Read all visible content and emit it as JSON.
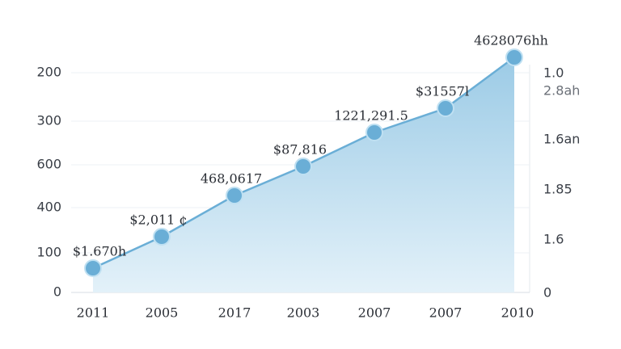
{
  "chart_data": {
    "type": "area",
    "categories": [
      "2011",
      "2005",
      "2017",
      "2003",
      "2007",
      "2007",
      "2010"
    ],
    "values": [
      10,
      23,
      40,
      52,
      66,
      76,
      97
    ],
    "point_labels": [
      "$1.670h",
      "$2,011 ¢",
      "468,0617",
      "$87,816",
      "1221,291.5",
      "$31557l",
      "4628076hh"
    ],
    "left_axis_labels": [
      "200",
      "300",
      "600",
      "400",
      "100",
      "0"
    ],
    "right_axis_labels": [
      "1.0",
      "2.8ah",
      "1.6an",
      "1.85",
      "1.6",
      "0"
    ],
    "ylim": [
      0,
      100
    ],
    "color": "#6aaed6",
    "grid": true
  }
}
